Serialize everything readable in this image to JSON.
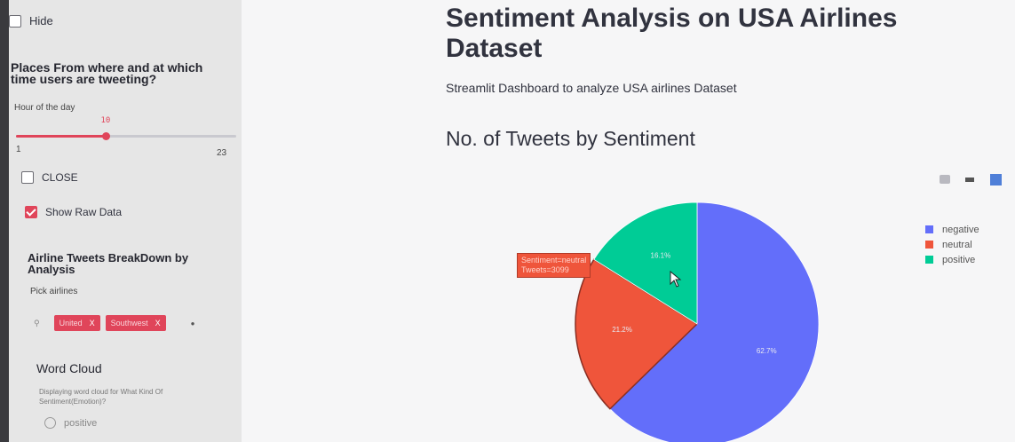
{
  "sidebar": {
    "hide_label": "Hide",
    "places_heading": "Places From where and at which time users are tweeting?",
    "slider": {
      "label": "Hour of the day",
      "value": 10,
      "min": 1,
      "max": 23,
      "value_text": "10",
      "min_text": "1",
      "max_text": "23"
    },
    "close_label": "CLOSE",
    "show_raw_label": "Show Raw Data",
    "breakdown_heading": "Airline Tweets BreakDown by Analysis",
    "pick_label": "Pick airlines",
    "selected_airlines": [
      {
        "label": "United",
        "remove": "X"
      },
      {
        "label": "Southwest",
        "remove": "X"
      }
    ],
    "word_cloud_heading": "Word Cloud",
    "word_cloud_text": "Displaying word cloud for What Kind Of Sentiment(Emotion)?",
    "radio_option": "positive"
  },
  "main": {
    "title": "Sentiment Analysis on USA Airlines Dataset",
    "subtitle": "Streamlit Dashboard to analyze USA airlines Dataset",
    "section_title": "No. of Tweets by Sentiment"
  },
  "chart_data": {
    "type": "pie",
    "slices": [
      {
        "label": "negative",
        "percent": 62.7,
        "color": "#636efa"
      },
      {
        "label": "neutral",
        "percent": 21.2,
        "color": "#ef553b"
      },
      {
        "label": "positive",
        "percent": 16.1,
        "color": "#00cc96"
      }
    ],
    "slice_labels": [
      "62.7%",
      "21.2%",
      "16.1%"
    ],
    "legend": [
      "negative",
      "neutral",
      "positive"
    ],
    "legend_position": "right",
    "hover": {
      "line1": "Sentiment=neutral",
      "line2": "Tweets=3099"
    }
  },
  "colors": {
    "accent": "#e0455a",
    "sidebar_bg": "#e6e6e6"
  }
}
